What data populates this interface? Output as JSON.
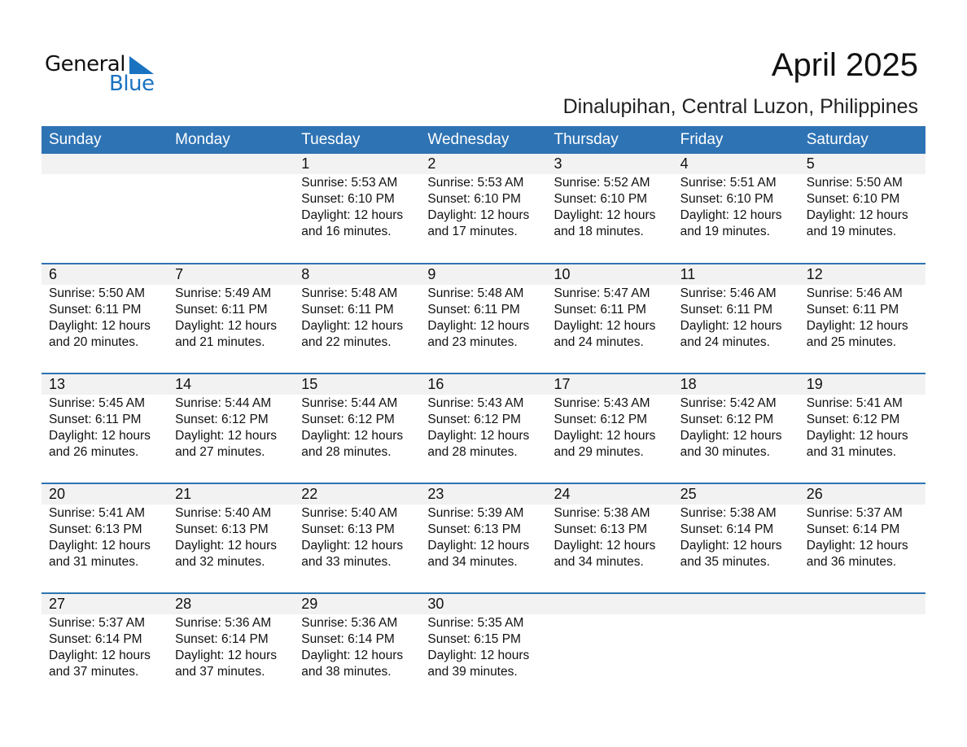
{
  "logo": {
    "word1": "General",
    "word2": "Blue",
    "color": "#1a73c0"
  },
  "title": "April 2025",
  "subtitle": "Dinalupihan, Central Luzon, Philippines",
  "colors": {
    "header_bg": "#2e73b4",
    "date_band": "#f2f2f2"
  },
  "weekdays": [
    "Sunday",
    "Monday",
    "Tuesday",
    "Wednesday",
    "Thursday",
    "Friday",
    "Saturday"
  ],
  "first_weekday_offset": 2,
  "days": [
    {
      "day": "1",
      "sunrise": "Sunrise: 5:53 AM",
      "sunset": "Sunset: 6:10 PM",
      "daylight": "Daylight: 12 hours",
      "minutes": "and 16 minutes."
    },
    {
      "day": "2",
      "sunrise": "Sunrise: 5:53 AM",
      "sunset": "Sunset: 6:10 PM",
      "daylight": "Daylight: 12 hours",
      "minutes": "and 17 minutes."
    },
    {
      "day": "3",
      "sunrise": "Sunrise: 5:52 AM",
      "sunset": "Sunset: 6:10 PM",
      "daylight": "Daylight: 12 hours",
      "minutes": "and 18 minutes."
    },
    {
      "day": "4",
      "sunrise": "Sunrise: 5:51 AM",
      "sunset": "Sunset: 6:10 PM",
      "daylight": "Daylight: 12 hours",
      "minutes": "and 19 minutes."
    },
    {
      "day": "5",
      "sunrise": "Sunrise: 5:50 AM",
      "sunset": "Sunset: 6:10 PM",
      "daylight": "Daylight: 12 hours",
      "minutes": "and 19 minutes."
    },
    {
      "day": "6",
      "sunrise": "Sunrise: 5:50 AM",
      "sunset": "Sunset: 6:11 PM",
      "daylight": "Daylight: 12 hours",
      "minutes": "and 20 minutes."
    },
    {
      "day": "7",
      "sunrise": "Sunrise: 5:49 AM",
      "sunset": "Sunset: 6:11 PM",
      "daylight": "Daylight: 12 hours",
      "minutes": "and 21 minutes."
    },
    {
      "day": "8",
      "sunrise": "Sunrise: 5:48 AM",
      "sunset": "Sunset: 6:11 PM",
      "daylight": "Daylight: 12 hours",
      "minutes": "and 22 minutes."
    },
    {
      "day": "9",
      "sunrise": "Sunrise: 5:48 AM",
      "sunset": "Sunset: 6:11 PM",
      "daylight": "Daylight: 12 hours",
      "minutes": "and 23 minutes."
    },
    {
      "day": "10",
      "sunrise": "Sunrise: 5:47 AM",
      "sunset": "Sunset: 6:11 PM",
      "daylight": "Daylight: 12 hours",
      "minutes": "and 24 minutes."
    },
    {
      "day": "11",
      "sunrise": "Sunrise: 5:46 AM",
      "sunset": "Sunset: 6:11 PM",
      "daylight": "Daylight: 12 hours",
      "minutes": "and 24 minutes."
    },
    {
      "day": "12",
      "sunrise": "Sunrise: 5:46 AM",
      "sunset": "Sunset: 6:11 PM",
      "daylight": "Daylight: 12 hours",
      "minutes": "and 25 minutes."
    },
    {
      "day": "13",
      "sunrise": "Sunrise: 5:45 AM",
      "sunset": "Sunset: 6:11 PM",
      "daylight": "Daylight: 12 hours",
      "minutes": "and 26 minutes."
    },
    {
      "day": "14",
      "sunrise": "Sunrise: 5:44 AM",
      "sunset": "Sunset: 6:12 PM",
      "daylight": "Daylight: 12 hours",
      "minutes": "and 27 minutes."
    },
    {
      "day": "15",
      "sunrise": "Sunrise: 5:44 AM",
      "sunset": "Sunset: 6:12 PM",
      "daylight": "Daylight: 12 hours",
      "minutes": "and 28 minutes."
    },
    {
      "day": "16",
      "sunrise": "Sunrise: 5:43 AM",
      "sunset": "Sunset: 6:12 PM",
      "daylight": "Daylight: 12 hours",
      "minutes": "and 28 minutes."
    },
    {
      "day": "17",
      "sunrise": "Sunrise: 5:43 AM",
      "sunset": "Sunset: 6:12 PM",
      "daylight": "Daylight: 12 hours",
      "minutes": "and 29 minutes."
    },
    {
      "day": "18",
      "sunrise": "Sunrise: 5:42 AM",
      "sunset": "Sunset: 6:12 PM",
      "daylight": "Daylight: 12 hours",
      "minutes": "and 30 minutes."
    },
    {
      "day": "19",
      "sunrise": "Sunrise: 5:41 AM",
      "sunset": "Sunset: 6:12 PM",
      "daylight": "Daylight: 12 hours",
      "minutes": "and 31 minutes."
    },
    {
      "day": "20",
      "sunrise": "Sunrise: 5:41 AM",
      "sunset": "Sunset: 6:13 PM",
      "daylight": "Daylight: 12 hours",
      "minutes": "and 31 minutes."
    },
    {
      "day": "21",
      "sunrise": "Sunrise: 5:40 AM",
      "sunset": "Sunset: 6:13 PM",
      "daylight": "Daylight: 12 hours",
      "minutes": "and 32 minutes."
    },
    {
      "day": "22",
      "sunrise": "Sunrise: 5:40 AM",
      "sunset": "Sunset: 6:13 PM",
      "daylight": "Daylight: 12 hours",
      "minutes": "and 33 minutes."
    },
    {
      "day": "23",
      "sunrise": "Sunrise: 5:39 AM",
      "sunset": "Sunset: 6:13 PM",
      "daylight": "Daylight: 12 hours",
      "minutes": "and 34 minutes."
    },
    {
      "day": "24",
      "sunrise": "Sunrise: 5:38 AM",
      "sunset": "Sunset: 6:13 PM",
      "daylight": "Daylight: 12 hours",
      "minutes": "and 34 minutes."
    },
    {
      "day": "25",
      "sunrise": "Sunrise: 5:38 AM",
      "sunset": "Sunset: 6:14 PM",
      "daylight": "Daylight: 12 hours",
      "minutes": "and 35 minutes."
    },
    {
      "day": "26",
      "sunrise": "Sunrise: 5:37 AM",
      "sunset": "Sunset: 6:14 PM",
      "daylight": "Daylight: 12 hours",
      "minutes": "and 36 minutes."
    },
    {
      "day": "27",
      "sunrise": "Sunrise: 5:37 AM",
      "sunset": "Sunset: 6:14 PM",
      "daylight": "Daylight: 12 hours",
      "minutes": "and 37 minutes."
    },
    {
      "day": "28",
      "sunrise": "Sunrise: 5:36 AM",
      "sunset": "Sunset: 6:14 PM",
      "daylight": "Daylight: 12 hours",
      "minutes": "and 37 minutes."
    },
    {
      "day": "29",
      "sunrise": "Sunrise: 5:36 AM",
      "sunset": "Sunset: 6:14 PM",
      "daylight": "Daylight: 12 hours",
      "minutes": "and 38 minutes."
    },
    {
      "day": "30",
      "sunrise": "Sunrise: 5:35 AM",
      "sunset": "Sunset: 6:15 PM",
      "daylight": "Daylight: 12 hours",
      "minutes": "and 39 minutes."
    }
  ]
}
